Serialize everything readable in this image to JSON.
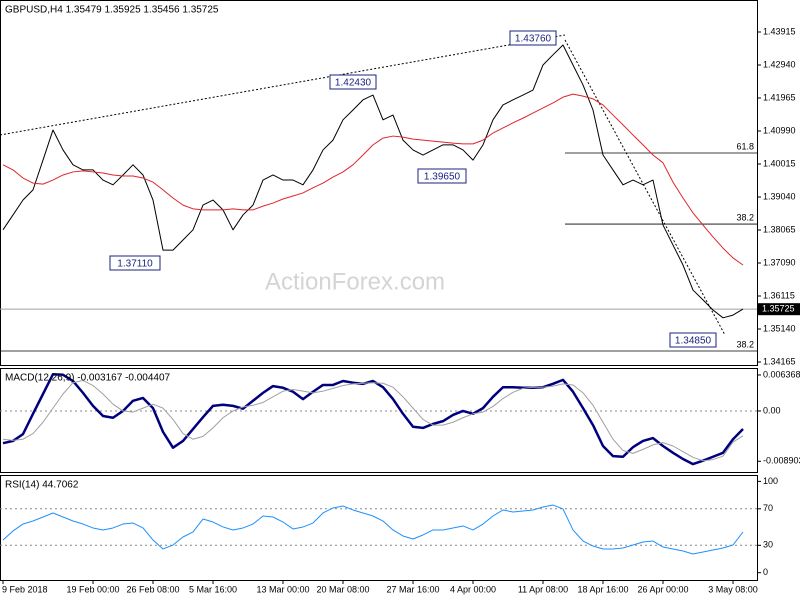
{
  "chart_data": [
    {
      "type": "line",
      "title": "GBPUSD,H4  1.35479 1.35925 1.35456 1.35725",
      "watermark": "ActionForex.com",
      "series": [
        {
          "color": "#000000",
          "values": [
            1.3807,
            1.3851,
            1.3895,
            1.3925,
            1.4013,
            1.4102,
            1.4043,
            1.3999,
            1.3984,
            1.3984,
            1.3954,
            1.394,
            1.3969,
            1.3999,
            1.3969,
            1.3895,
            1.3747,
            1.3747,
            1.3777,
            1.3807,
            1.388,
            1.3895,
            1.3866,
            1.3807,
            1.3851,
            1.388,
            1.3954,
            1.3969,
            1.3954,
            1.3954,
            1.394,
            1.3984,
            1.4043,
            1.4072,
            1.4132,
            1.4161,
            1.4191,
            1.4205,
            1.4132,
            1.4146,
            1.4072,
            1.4043,
            1.4028,
            1.4043,
            1.4058,
            1.4058,
            1.4043,
            1.4013,
            1.4058,
            1.4132,
            1.4176,
            1.4191,
            1.4205,
            1.422,
            1.4294,
            1.4324,
            1.4353,
            1.4294,
            1.4235,
            1.4161,
            1.4028,
            1.3984,
            1.394,
            1.3954,
            1.394,
            1.3954,
            1.3821,
            1.3762,
            1.3703,
            1.3629,
            1.36,
            1.357,
            1.3547,
            1.3555,
            1.3573
          ]
        },
        {
          "color": "#e0252a",
          "values": [
            1.3999,
            1.3984,
            1.396,
            1.3945,
            1.3942,
            1.3954,
            1.3969,
            1.3978,
            1.3981,
            1.3978,
            1.3975,
            1.3969,
            1.3966,
            1.3966,
            1.396,
            1.3948,
            1.3925,
            1.3901,
            1.388,
            1.3869,
            1.3866,
            1.3866,
            1.3866,
            1.3869,
            1.3866,
            1.3866,
            1.3877,
            1.3886,
            1.3898,
            1.3907,
            1.3916,
            1.3931,
            1.3945,
            1.3963,
            1.3978,
            1.3999,
            1.4028,
            1.4058,
            1.4078,
            1.4084,
            1.4081,
            1.4075,
            1.4072,
            1.4069,
            1.4066,
            1.4063,
            1.4061,
            1.4061,
            1.4072,
            1.4093,
            1.4108,
            1.4123,
            1.4137,
            1.4152,
            1.4167,
            1.4182,
            1.4199,
            1.4208,
            1.4202,
            1.4194,
            1.4176,
            1.4146,
            1.4117,
            1.4087,
            1.4058,
            1.4028,
            1.4005,
            1.3948,
            1.3901,
            1.3857,
            1.3821,
            1.3786,
            1.3753,
            1.3724,
            1.3703
          ]
        }
      ],
      "ylim": [
        1.34076,
        1.4486
      ],
      "yticks": [
        1.43915,
        {
          "value": 1.4294,
          "label": "1.42940"
        },
        1.41965,
        {
          "value": 1.4099,
          "label": "1.40990"
        },
        1.40015,
        {
          "value": 1.3904,
          "label": "1.39040"
        },
        1.38065,
        {
          "value": 1.3709,
          "label": "1.37090"
        },
        1.36115,
        {
          "value": 1.3514,
          "label": "1.35140"
        },
        1.34165
      ],
      "last_price": 1.35725,
      "annotations": [
        "1.43760",
        "1.42430",
        "1.39650",
        "1.37110",
        "1.34850"
      ],
      "levels": [
        {
          "value": 1.4034,
          "label": "61.8"
        },
        {
          "value": 1.3824,
          "label": "38.2"
        },
        {
          "value": 1.3449,
          "label": "38.2"
        }
      ]
    },
    {
      "type": "line",
      "title": "MACD(12,26,9) -0.003167 -0.004407",
      "series": [
        {
          "color": "#00007f",
          "values": [
            -0.0057,
            -0.0053,
            -0.0041,
            -0.0005,
            0.003,
            0.0065,
            0.0064,
            0.0053,
            0.0032,
            0.0009,
            -0.0009,
            -0.0012,
            0.0,
            0.0018,
            0.0023,
            0.0005,
            -0.0037,
            -0.0065,
            -0.0053,
            -0.0032,
            -0.0011,
            0.0009,
            0.0011,
            0.0009,
            0.0004,
            0.0018,
            0.0032,
            0.0044,
            0.0041,
            0.0034,
            0.0021,
            0.0034,
            0.0046,
            0.0046,
            0.0053,
            0.005,
            0.0048,
            0.0053,
            0.0042,
            0.0021,
            -0.0005,
            -0.0028,
            -0.003,
            -0.0023,
            -0.0018,
            -0.0007,
            0.0,
            -0.0005,
            0.0005,
            0.0025,
            0.0042,
            0.0042,
            0.0041,
            0.0041,
            0.0042,
            0.0048,
            0.0055,
            0.0034,
            0.0005,
            -0.0025,
            -0.0062,
            -0.008,
            -0.0081,
            -0.0064,
            -0.0053,
            -0.0048,
            -0.0062,
            -0.0074,
            -0.0085,
            -0.0094,
            -0.0088,
            -0.0081,
            -0.0074,
            -0.005,
            -0.0032
          ]
        },
        {
          "color": "#a0a0a0",
          "values": [
            -0.005,
            -0.0052,
            -0.005,
            -0.004,
            -0.002,
            0.0005,
            0.003,
            0.005,
            0.0054,
            0.0045,
            0.003,
            0.0012,
            0.0,
            -0.0002,
            0.0005,
            0.0012,
            0.0005,
            -0.0015,
            -0.004,
            -0.005,
            -0.0045,
            -0.003,
            -0.0012,
            0.0,
            0.0007,
            0.001,
            0.0015,
            0.0025,
            0.0035,
            0.0038,
            0.0035,
            0.0032,
            0.0035,
            0.004,
            0.0045,
            0.0048,
            0.0049,
            0.005,
            0.0049,
            0.0042,
            0.0025,
            0.0005,
            -0.0015,
            -0.0025,
            -0.0025,
            -0.002,
            -0.0012,
            -0.0005,
            -0.0002,
            0.0008,
            0.0022,
            0.0033,
            0.004,
            0.0042,
            0.0042,
            0.0044,
            0.0048,
            0.0046,
            0.0032,
            0.001,
            -0.002,
            -0.005,
            -0.007,
            -0.0075,
            -0.0068,
            -0.006,
            -0.0056,
            -0.0062,
            -0.0072,
            -0.0082,
            -0.0088,
            -0.0086,
            -0.008,
            -0.0055,
            -0.0044
          ]
        }
      ],
      "ylim": [
        -0.0108,
        0.0076
      ],
      "yticks": [
        0.006368,
        {
          "value": 0,
          "label": "0.00"
        },
        -0.008903
      ],
      "hlines": [
        0
      ]
    },
    {
      "type": "line",
      "title": "RSI(14) 44.7062",
      "series": [
        {
          "color": "#1e90ff",
          "values": [
            35.8,
            45.7,
            53.3,
            56.6,
            61.0,
            65.4,
            61.0,
            56.6,
            53.3,
            49.0,
            46.8,
            49.0,
            53.3,
            54.4,
            49.0,
            35.8,
            26.0,
            30.3,
            39.1,
            44.6,
            58.8,
            55.5,
            50.1,
            46.8,
            49.0,
            53.3,
            62.1,
            61.0,
            55.5,
            47.9,
            50.1,
            54.4,
            65.4,
            70.9,
            73.1,
            68.7,
            65.4,
            62.1,
            56.6,
            46.8,
            40.2,
            36.9,
            41.3,
            46.8,
            46.8,
            49.0,
            51.2,
            46.8,
            53.3,
            62.1,
            68.7,
            66.5,
            67.6,
            68.7,
            72.0,
            74.1,
            69.8,
            46.8,
            34.7,
            29.2,
            26.0,
            26.0,
            27.0,
            30.3,
            33.6,
            34.7,
            28.1,
            26.0,
            23.8,
            20.5,
            22.7,
            24.9,
            27.0,
            30.3,
            44.7
          ]
        }
      ],
      "ylim": [
        -8,
        107
      ],
      "yticks": [
        100,
        70,
        30,
        0
      ],
      "hlines": [
        70,
        30
      ],
      "categories": [
        "9 Feb 2018",
        null,
        null,
        null,
        null,
        null,
        null,
        null,
        null,
        "19 Feb 00:00",
        null,
        null,
        null,
        null,
        null,
        "26 Feb 08:00",
        null,
        null,
        null,
        null,
        null,
        "5 Mar 16:00",
        null,
        null,
        null,
        null,
        null,
        null,
        "13 Mar 00:00",
        null,
        null,
        null,
        null,
        null,
        "20 Mar 08:00",
        null,
        null,
        null,
        null,
        null,
        null,
        "27 Mar 16:00",
        null,
        null,
        null,
        null,
        null,
        "4 Apr 00:00",
        null,
        null,
        null,
        null,
        null,
        null,
        "11 Apr 08:00",
        null,
        null,
        null,
        null,
        null,
        "18 Apr 16:00",
        null,
        null,
        null,
        null,
        null,
        "26 Apr 00:00",
        null,
        null,
        null,
        null,
        null,
        null,
        "3 May 08:00",
        null
      ]
    }
  ]
}
